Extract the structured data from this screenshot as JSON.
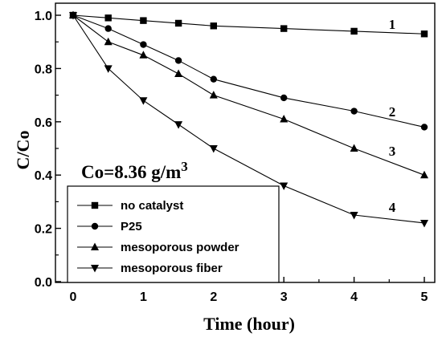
{
  "chart_data": {
    "type": "line",
    "xlabel": "Time (hour)",
    "ylabel": "C/Co",
    "xlim": [
      0,
      5
    ],
    "ylim": [
      0,
      1
    ],
    "x": [
      0,
      0.5,
      1,
      1.5,
      2,
      3,
      4,
      5
    ],
    "x_ticks": [
      "0",
      "1",
      "2",
      "3",
      "4",
      "5"
    ],
    "y_ticks": [
      "0.0",
      "0.2",
      "0.4",
      "0.6",
      "0.8",
      "1.0"
    ],
    "grid": false,
    "legend_position": "bottom-left",
    "annotation": {
      "prefix": "Co=8.36 g/m",
      "superscript": "3"
    },
    "series": [
      {
        "name": "no catalyst",
        "marker": "square",
        "curve_label": "1",
        "values": [
          1.0,
          0.99,
          0.98,
          0.97,
          0.96,
          0.95,
          0.94,
          0.93
        ]
      },
      {
        "name": "P25",
        "marker": "circle",
        "curve_label": "2",
        "values": [
          1.0,
          0.95,
          0.89,
          0.83,
          0.76,
          0.69,
          0.64,
          0.58
        ]
      },
      {
        "name": "mesoporous powder",
        "marker": "triangle-up",
        "curve_label": "3",
        "values": [
          1.0,
          0.9,
          0.85,
          0.78,
          0.7,
          0.61,
          0.5,
          0.4
        ]
      },
      {
        "name": "mesoporous fiber",
        "marker": "triangle-down",
        "curve_label": "4",
        "values": [
          1.0,
          0.8,
          0.68,
          0.59,
          0.5,
          0.36,
          0.25,
          0.22
        ]
      }
    ]
  }
}
